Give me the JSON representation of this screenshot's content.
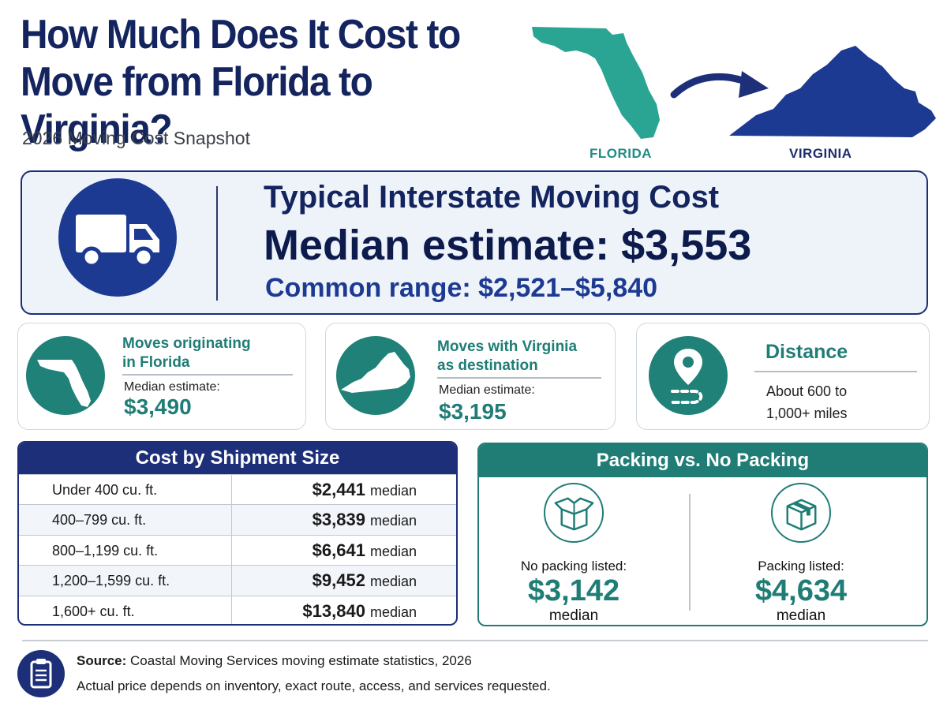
{
  "header": {
    "title_line1": "How Much Does It Cost to",
    "title_line2": "Move from Florida to Virginia?",
    "subtitle": "2026 Moving Cost Snapshot",
    "from_label": "FLORIDA",
    "to_label": "VIRGINIA"
  },
  "hero": {
    "title": "Typical Interstate Moving Cost",
    "median": "Median estimate: $3,553",
    "range": "Common range: $2,521–$5,840",
    "icon": "truck-icon"
  },
  "cards": [
    {
      "heading_line1": "Moves originating",
      "heading_line2": "in Florida",
      "label": "Median estimate:",
      "value": "$3,490",
      "icon": "florida-map-icon"
    },
    {
      "heading_line1": "Moves with Virginia",
      "heading_line2": "as destination",
      "label": "Median estimate:",
      "value": "$3,195",
      "icon": "virginia-map-icon"
    },
    {
      "heading_line1": "Distance",
      "text_line1": "About 600 to",
      "text_line2": "1,000+ miles",
      "icon": "map-pin-icon"
    }
  ],
  "shipment": {
    "title": "Cost by Shipment Size",
    "unit": "median",
    "rows": [
      {
        "size": "Under 400 cu. ft.",
        "value": "$2,441"
      },
      {
        "size": "400–799 cu. ft.",
        "value": "$3,839"
      },
      {
        "size": "800–1,199 cu. ft.",
        "value": "$6,641"
      },
      {
        "size": "1,200–1,599 cu. ft.",
        "value": "$9,452"
      },
      {
        "size": "1,600+ cu. ft.",
        "value": "$13,840"
      }
    ]
  },
  "packing": {
    "title": "Packing vs. No Packing",
    "options": [
      {
        "label": "No packing listed:",
        "value": "$3,142",
        "unit": "median",
        "icon": "open-box-icon"
      },
      {
        "label": "Packing listed:",
        "value": "$4,634",
        "unit": "median",
        "icon": "taped-box-icon"
      }
    ]
  },
  "footer": {
    "source_label": "Source:",
    "source_text": "Coastal Moving Services moving estimate statistics, 2026",
    "note": "Actual price depends on inventory, exact route, access, and services requested.",
    "icon": "clipboard-icon"
  },
  "colors": {
    "navy": "#1c2f78",
    "teal": "#1f7d75",
    "florida_map": "#2aa593",
    "virginia_map": "#1d3a92"
  }
}
